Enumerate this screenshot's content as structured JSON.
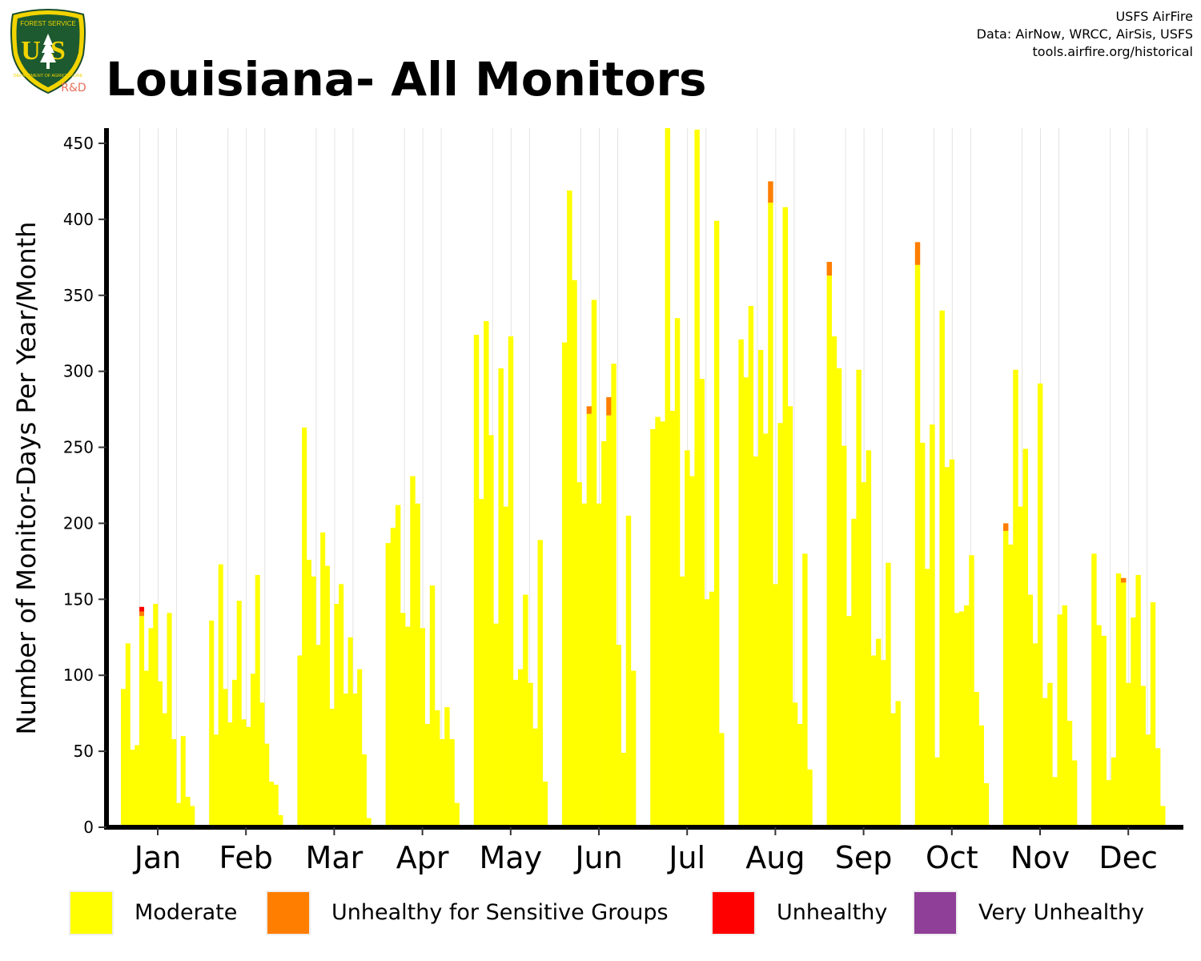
{
  "logo": {
    "text_top": "FOREST SERVICE",
    "initials": "US",
    "text_bottom": "DEPARTMENT OF AGRICULTURE",
    "badge": "R&D"
  },
  "title": "Louisiana- All Monitors",
  "credits": [
    "USFS AirFire",
    "Data: AirNow, WRCC, AirSis, USFS",
    "tools.airfire.org/historical"
  ],
  "colors": {
    "moderate": "#FFFF00",
    "usg": "#FF7E00",
    "unhealthy": "#FF0000",
    "very_unhealthy": "#8F3F97"
  },
  "chart_data": {
    "type": "bar",
    "stacked": true,
    "title": "Louisiana- All Monitors",
    "ylabel": "Number of Monitor-Days Per Year/Month",
    "xlabel": "",
    "ylim": [
      0,
      460
    ],
    "yticks": [
      0,
      50,
      100,
      150,
      200,
      250,
      300,
      350,
      400,
      450
    ],
    "months": [
      "Jan",
      "Feb",
      "Mar",
      "Apr",
      "May",
      "Jun",
      "Jul",
      "Aug",
      "Sep",
      "Oct",
      "Nov",
      "Dec"
    ],
    "grid": "vertical lines between months",
    "legend_position": "bottom",
    "legend": [
      "Moderate",
      "Unhealthy for Sensitive Groups",
      "Unhealthy",
      "Very Unhealthy"
    ],
    "series": [
      {
        "name": "Moderate",
        "values": [
          [
            91,
            121,
            51,
            54,
            139,
            103,
            131,
            147,
            96,
            75,
            141,
            58,
            16,
            60,
            20,
            14
          ],
          [
            136,
            61,
            173,
            91,
            69,
            97,
            149,
            71,
            66,
            101,
            166,
            82,
            55,
            30,
            28,
            8
          ],
          [
            113,
            263,
            176,
            165,
            120,
            194,
            172,
            78,
            147,
            160,
            88,
            125,
            88,
            104,
            48,
            6
          ],
          [
            187,
            197,
            212,
            141,
            132,
            231,
            213,
            131,
            68,
            159,
            77,
            58,
            79,
            58,
            16
          ],
          [
            324,
            216,
            333,
            258,
            134,
            302,
            211,
            323,
            97,
            104,
            153,
            95,
            65,
            189,
            30
          ],
          [
            319,
            419,
            360,
            227,
            213,
            272,
            347,
            213,
            254,
            271,
            305,
            120,
            49,
            205,
            103
          ],
          [
            262,
            270,
            267,
            462,
            274,
            335,
            165,
            248,
            231,
            459,
            295,
            150,
            155,
            399,
            62
          ],
          [
            321,
            296,
            343,
            244,
            314,
            259,
            411,
            160,
            266,
            408,
            277,
            82,
            68,
            180,
            38
          ],
          [
            363,
            323,
            302,
            251,
            139,
            203,
            301,
            227,
            248,
            113,
            124,
            110,
            174,
            75,
            83
          ],
          [
            370,
            253,
            170,
            265,
            46,
            340,
            237,
            242,
            141,
            142,
            146,
            179,
            89,
            67,
            29
          ],
          [
            195,
            186,
            301,
            211,
            249,
            153,
            121,
            292,
            85,
            95,
            33,
            140,
            146,
            70,
            44
          ],
          [
            180,
            133,
            126,
            31,
            46,
            167,
            161,
            95,
            138,
            166,
            93,
            61,
            148,
            52,
            14
          ]
        ]
      },
      {
        "name": "Unhealthy for Sensitive Groups",
        "values": [
          [
            0,
            0,
            0,
            0,
            3,
            0,
            0,
            0,
            0,
            0,
            0,
            0,
            0,
            0,
            0,
            0
          ],
          [
            0,
            0,
            0,
            0,
            0,
            0,
            0,
            0,
            0,
            0,
            0,
            0,
            0,
            0,
            0,
            0
          ],
          [
            0,
            0,
            0,
            0,
            0,
            0,
            0,
            0,
            0,
            0,
            0,
            0,
            0,
            0,
            0,
            0
          ],
          [
            0,
            0,
            0,
            0,
            0,
            0,
            0,
            0,
            0,
            0,
            0,
            0,
            0,
            0,
            0
          ],
          [
            0,
            0,
            0,
            0,
            0,
            0,
            0,
            0,
            0,
            0,
            0,
            0,
            0,
            0,
            0
          ],
          [
            0,
            0,
            0,
            0,
            0,
            5,
            0,
            0,
            0,
            12,
            0,
            0,
            0,
            0,
            0
          ],
          [
            0,
            0,
            0,
            0,
            0,
            0,
            0,
            0,
            0,
            0,
            0,
            0,
            0,
            0,
            0
          ],
          [
            0,
            0,
            0,
            0,
            0,
            0,
            14,
            0,
            0,
            0,
            0,
            0,
            0,
            0,
            0
          ],
          [
            9,
            0,
            0,
            0,
            0,
            0,
            0,
            0,
            0,
            0,
            0,
            0,
            0,
            0,
            0
          ],
          [
            15,
            0,
            0,
            0,
            0,
            0,
            0,
            0,
            0,
            0,
            0,
            0,
            0,
            0,
            0
          ],
          [
            5,
            0,
            0,
            0,
            0,
            0,
            0,
            0,
            0,
            0,
            0,
            0,
            0,
            0,
            0
          ],
          [
            0,
            0,
            0,
            0,
            0,
            0,
            3,
            0,
            0,
            0,
            0,
            0,
            0,
            0,
            0
          ]
        ]
      },
      {
        "name": "Unhealthy",
        "values": [
          [
            0,
            0,
            0,
            0,
            3,
            0,
            0,
            0,
            0,
            0,
            0,
            0,
            0,
            0,
            0,
            0
          ],
          [
            0,
            0,
            0,
            0,
            0,
            0,
            0,
            0,
            0,
            0,
            0,
            0,
            0,
            0,
            0,
            0
          ],
          [
            0,
            0,
            0,
            0,
            0,
            0,
            0,
            0,
            0,
            0,
            0,
            0,
            0,
            0,
            0,
            0
          ],
          [
            0,
            0,
            0,
            0,
            0,
            0,
            0,
            0,
            0,
            0,
            0,
            0,
            0,
            0,
            0
          ],
          [
            0,
            0,
            0,
            0,
            0,
            0,
            0,
            0,
            0,
            0,
            0,
            0,
            0,
            0,
            0
          ],
          [
            0,
            0,
            0,
            0,
            0,
            0,
            0,
            0,
            0,
            0,
            0,
            0,
            0,
            0,
            0
          ],
          [
            0,
            0,
            0,
            0,
            0,
            0,
            0,
            0,
            0,
            0,
            0,
            0,
            0,
            0,
            0
          ],
          [
            0,
            0,
            0,
            0,
            0,
            0,
            0,
            0,
            0,
            0,
            0,
            0,
            0,
            0,
            0
          ],
          [
            0,
            0,
            0,
            0,
            0,
            0,
            0,
            0,
            0,
            0,
            0,
            0,
            0,
            0,
            0
          ],
          [
            0,
            0,
            0,
            0,
            0,
            0,
            0,
            0,
            0,
            0,
            0,
            0,
            0,
            0,
            0
          ],
          [
            0,
            0,
            0,
            0,
            0,
            0,
            0,
            0,
            0,
            0,
            0,
            0,
            0,
            0,
            0
          ],
          [
            0,
            0,
            0,
            0,
            0,
            0,
            0,
            0,
            0,
            0,
            0,
            0,
            0,
            0,
            0
          ]
        ]
      },
      {
        "name": "Very Unhealthy",
        "values": [
          [
            0,
            0,
            0,
            0,
            0,
            0,
            0,
            0,
            0,
            0,
            0,
            0,
            0,
            0,
            0,
            0
          ],
          [
            0,
            0,
            0,
            0,
            0,
            0,
            0,
            0,
            0,
            0,
            0,
            0,
            0,
            0,
            0,
            0
          ],
          [
            0,
            0,
            0,
            0,
            0,
            0,
            0,
            0,
            0,
            0,
            0,
            0,
            0,
            0,
            0,
            0
          ],
          [
            0,
            0,
            0,
            0,
            0,
            0,
            0,
            0,
            0,
            0,
            0,
            0,
            0,
            0,
            0
          ],
          [
            0,
            0,
            0,
            0,
            0,
            0,
            0,
            0,
            0,
            0,
            0,
            0,
            0,
            0,
            0
          ],
          [
            0,
            0,
            0,
            0,
            0,
            0,
            0,
            0,
            0,
            0,
            0,
            0,
            0,
            0,
            0
          ],
          [
            0,
            0,
            0,
            0,
            0,
            0,
            0,
            0,
            0,
            0,
            0,
            0,
            0,
            0,
            0
          ],
          [
            0,
            0,
            0,
            0,
            0,
            0,
            0,
            0,
            0,
            0,
            0,
            0,
            0,
            0,
            0
          ],
          [
            0,
            0,
            0,
            0,
            0,
            0,
            0,
            0,
            0,
            0,
            0,
            0,
            0,
            0,
            0
          ],
          [
            0,
            0,
            0,
            0,
            0,
            0,
            0,
            0,
            0,
            0,
            0,
            0,
            0,
            0,
            0
          ],
          [
            0,
            0,
            0,
            0,
            0,
            0,
            0,
            0,
            0,
            0,
            0,
            0,
            0,
            0,
            0
          ],
          [
            0,
            0,
            0,
            0,
            0,
            0,
            0,
            0,
            0,
            0,
            0,
            0,
            0,
            0,
            0
          ]
        ]
      }
    ]
  }
}
